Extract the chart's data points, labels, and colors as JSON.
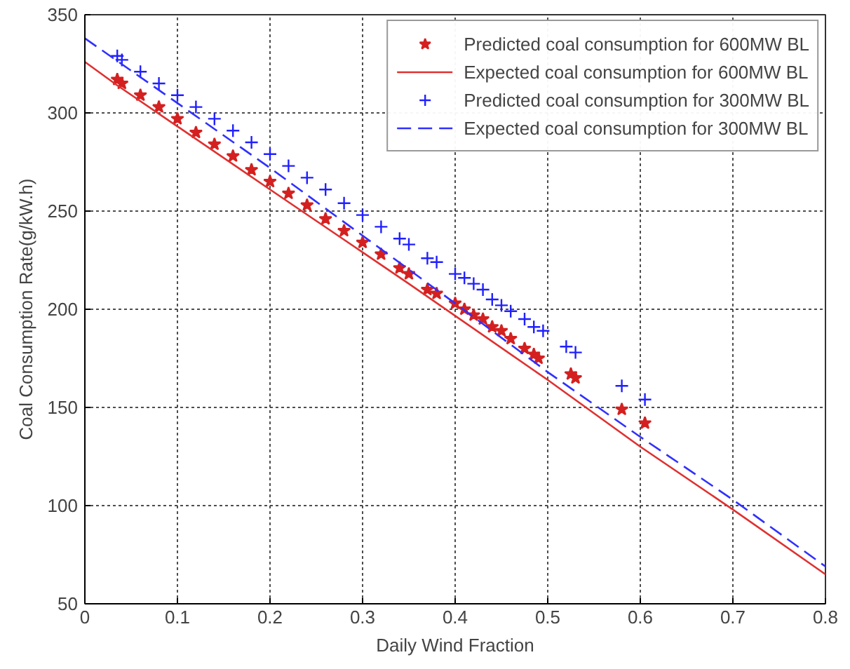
{
  "chart_data": {
    "type": "scatter",
    "xlabel": "Daily Wind Fraction",
    "ylabel": "Coal Consumption Rate(g/kW.h)",
    "xlim": [
      0,
      0.8
    ],
    "ylim": [
      50,
      350
    ],
    "xticks": [
      {
        "value": 0,
        "label": "0"
      },
      0.1,
      0.2,
      0.3,
      0.4,
      0.5,
      0.6,
      0.7,
      0.8
    ],
    "yticks": [
      50,
      100,
      150,
      200,
      250,
      300,
      350
    ],
    "grid": true,
    "legend": "top right",
    "series": [
      {
        "name": "Predicted coal consumption for 600MW BL",
        "marker": "star",
        "color": "#d42020",
        "x": [
          0.035,
          0.04,
          0.06,
          0.08,
          0.1,
          0.12,
          0.14,
          0.16,
          0.18,
          0.2,
          0.22,
          0.24,
          0.26,
          0.28,
          0.3,
          0.32,
          0.34,
          0.35,
          0.37,
          0.38,
          0.4,
          0.41,
          0.42,
          0.43,
          0.44,
          0.45,
          0.46,
          0.475,
          0.485,
          0.49,
          0.525,
          0.53,
          0.58,
          0.605
        ],
        "values": [
          317,
          315,
          309,
          303,
          297,
          290,
          284,
          278,
          271,
          265,
          259,
          253,
          246,
          240,
          234,
          228,
          221,
          218,
          210,
          208,
          203,
          200,
          197,
          195,
          191,
          189,
          185,
          180,
          177,
          175,
          167,
          165,
          149,
          142
        ]
      },
      {
        "name": "Expected coal consumption for 600MW BL",
        "type": "line",
        "line_style": "solid",
        "color": "#e03030",
        "x": [
          0,
          0.035,
          0.2,
          0.35,
          0.5,
          0.6,
          0.7,
          0.8
        ],
        "values": [
          326,
          314,
          261,
          213,
          164,
          130,
          98,
          65
        ]
      },
      {
        "name": "Predicted coal consumption for 300MW BL",
        "marker": "cross",
        "color": "#2020ff",
        "x": [
          0.035,
          0.04,
          0.06,
          0.08,
          0.1,
          0.12,
          0.14,
          0.16,
          0.18,
          0.2,
          0.22,
          0.24,
          0.26,
          0.28,
          0.3,
          0.32,
          0.34,
          0.35,
          0.37,
          0.38,
          0.4,
          0.41,
          0.42,
          0.43,
          0.44,
          0.45,
          0.46,
          0.475,
          0.485,
          0.495,
          0.52,
          0.53,
          0.58,
          0.605
        ],
        "values": [
          329,
          327,
          321,
          315,
          309,
          303,
          297,
          291,
          285,
          279,
          273,
          267,
          261,
          254,
          248,
          242,
          236,
          233,
          226,
          224,
          218,
          216,
          213,
          210,
          205,
          202,
          199,
          195,
          191,
          189,
          181,
          178,
          161,
          154
        ]
      },
      {
        "name": "Expected coal consumption for 300MW BL",
        "type": "line",
        "line_style": "dashed",
        "color": "#3030ff",
        "x": [
          0,
          0.2,
          0.4,
          0.5,
          0.6,
          0.7,
          0.8
        ],
        "values": [
          338,
          272,
          203,
          168,
          135,
          103,
          69
        ]
      }
    ]
  }
}
